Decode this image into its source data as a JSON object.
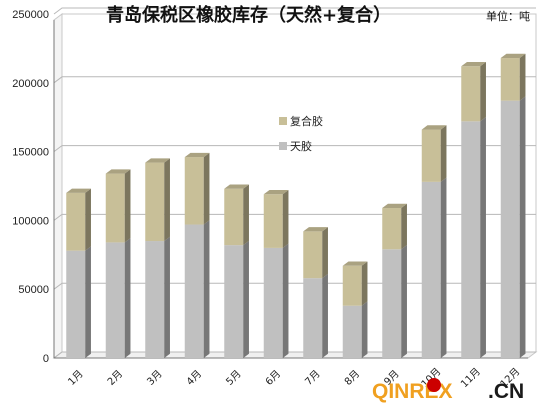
{
  "chart_data": {
    "type": "bar",
    "stacked": true,
    "title": "青岛保税区橡胶库存（天然+复合）",
    "unit_label": "单位：吨",
    "categories": [
      "1月",
      "2月",
      "3月",
      "4月",
      "5月",
      "6月",
      "7月",
      "8月",
      "9月",
      "10月",
      "11月",
      "12月"
    ],
    "series": [
      {
        "name": "天胶",
        "color": "#c0c0c0",
        "values": [
          78000,
          84000,
          85000,
          97000,
          82000,
          80000,
          58000,
          38000,
          79000,
          128000,
          172000,
          187000
        ]
      },
      {
        "name": "复合胶",
        "color": "#c8bf98",
        "values": [
          42000,
          50000,
          57000,
          49000,
          41000,
          39000,
          34000,
          29000,
          30000,
          38000,
          40000,
          31000
        ]
      }
    ],
    "ylim": [
      0,
      250000
    ],
    "yticks": [
      0,
      50000,
      100000,
      150000,
      200000,
      250000
    ],
    "grid": true,
    "legend": "center"
  },
  "watermark": {
    "brand": "QINREX",
    "suffix": ".CN",
    "dot_color": "#cc0000",
    "brand_color": "#f0a020",
    "suffix_color": "#1a1a1a"
  }
}
